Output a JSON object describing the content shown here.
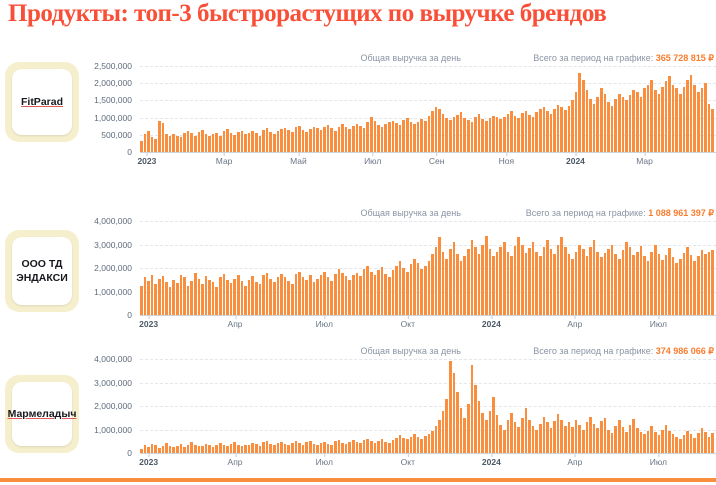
{
  "page": {
    "title": "Продукты: топ-3 быстрорастущих по выручке брендов"
  },
  "colors": {
    "accent_red": "#f94f38",
    "bar_orange": "#f98e3e",
    "total_orange": "#f97c2e",
    "card_cream": "#f6efcd"
  },
  "brands": [
    {
      "name": "FitParad",
      "linked": true
    },
    {
      "name": "ООО ТД ЭНДАКСИ",
      "linked": false
    },
    {
      "name": "Мармеладыч",
      "linked": true
    }
  ],
  "chart_data": [
    {
      "type": "bar",
      "title": "Общая выручка за день",
      "total_label": "Всего за период на графике:",
      "total_value": "365 728 815 ₽",
      "ylabel": "",
      "xlabel": "",
      "ylim": [
        0,
        2500000
      ],
      "grid": true,
      "ytick_labels": [
        "2,500,000",
        "2,000,000",
        "1,500,000",
        "1,000,000",
        "500,000",
        "0"
      ],
      "xticks": [
        {
          "label": "2023",
          "pos": 0.012,
          "bold": true
        },
        {
          "label": "Мар",
          "pos": 0.146,
          "bold": false
        },
        {
          "label": "Май",
          "pos": 0.275,
          "bold": false
        },
        {
          "label": "Июл",
          "pos": 0.404,
          "bold": false
        },
        {
          "label": "Сен",
          "pos": 0.515,
          "bold": false
        },
        {
          "label": "Ноя",
          "pos": 0.636,
          "bold": false
        },
        {
          "label": "2024",
          "pos": 0.756,
          "bold": true
        },
        {
          "label": "Мар",
          "pos": 0.876,
          "bold": false
        }
      ],
      "values": [
        320000,
        520000,
        610000,
        450000,
        380000,
        900000,
        830000,
        520000,
        460000,
        510000,
        480000,
        430000,
        560000,
        620000,
        540000,
        470000,
        590000,
        640000,
        520000,
        480000,
        510000,
        560000,
        470000,
        620000,
        680000,
        540000,
        500000,
        570000,
        610000,
        520000,
        560000,
        610000,
        540000,
        480000,
        650000,
        700000,
        580000,
        520000,
        610000,
        660000,
        700000,
        640000,
        580000,
        720000,
        760000,
        630000,
        590000,
        680000,
        740000,
        700000,
        650000,
        720000,
        780000,
        690000,
        610000,
        740000,
        800000,
        720000,
        660000,
        750000,
        820000,
        760000,
        700000,
        860000,
        1020000,
        900000,
        780000,
        730000,
        810000,
        870000,
        900000,
        840000,
        780000,
        920000,
        980000,
        860000,
        800000,
        880000,
        950000,
        900000,
        1050000,
        1180000,
        1320000,
        1240000,
        1100000,
        980000,
        920000,
        1010000,
        1080000,
        1150000,
        1000000,
        940000,
        880000,
        1020000,
        1100000,
        960000,
        900000,
        980000,
        1060000,
        1010000,
        950000,
        1020000,
        1100000,
        1180000,
        1050000,
        980000,
        1120000,
        1200000,
        1080000,
        1020000,
        1150000,
        1240000,
        1320000,
        1180000,
        1100000,
        1260000,
        1380000,
        1300000,
        1220000,
        1350000,
        1500000,
        1750000,
        2300000,
        2100000,
        1800000,
        1550000,
        1400000,
        1600000,
        1850000,
        1700000,
        1450000,
        1350000,
        1550000,
        1700000,
        1600000,
        1500000,
        1650000,
        1800000,
        1750000,
        1600000,
        1850000,
        1950000,
        2100000,
        1800000,
        1700000,
        1900000,
        2050000,
        2200000,
        1950000,
        1850000,
        1700000,
        1900000,
        2100000,
        2250000,
        1950000,
        1750000,
        1850000,
        2000000,
        1400000,
        1250000
      ]
    },
    {
      "type": "bar",
      "title": "Общая выручка за день",
      "total_label": "Всего за период на графике:",
      "total_value": "1 088 961 397 ₽",
      "ylabel": "",
      "xlabel": "",
      "ylim": [
        0,
        4000000
      ],
      "grid": true,
      "ytick_labels": [
        "4,000,000",
        "3,000,000",
        "2,000,000",
        "1,000,000",
        "0"
      ],
      "xticks": [
        {
          "label": "2023",
          "pos": 0.015,
          "bold": true
        },
        {
          "label": "Апр",
          "pos": 0.165,
          "bold": false
        },
        {
          "label": "Июл",
          "pos": 0.32,
          "bold": false
        },
        {
          "label": "Окт",
          "pos": 0.465,
          "bold": false
        },
        {
          "label": "2024",
          "pos": 0.61,
          "bold": true
        },
        {
          "label": "Апр",
          "pos": 0.755,
          "bold": false
        },
        {
          "label": "Июл",
          "pos": 0.9,
          "bold": false
        }
      ],
      "values": [
        1250000,
        1600000,
        1450000,
        1700000,
        1300000,
        1550000,
        1650000,
        1400000,
        1200000,
        1500000,
        1350000,
        1700000,
        1600000,
        1250000,
        1450000,
        1800000,
        1550000,
        1300000,
        1650000,
        1500000,
        1400000,
        1200000,
        1600000,
        1750000,
        1500000,
        1350000,
        1550000,
        1700000,
        1450000,
        1250000,
        1500000,
        1650000,
        1400000,
        1300000,
        1700000,
        1800000,
        1550000,
        1400000,
        1600000,
        1750000,
        1600000,
        1450000,
        1300000,
        1750000,
        1850000,
        1600000,
        1500000,
        1700000,
        1400000,
        1550000,
        1700000,
        1850000,
        1600000,
        1450000,
        1750000,
        1950000,
        1800000,
        1650000,
        1500000,
        1700000,
        1800000,
        1650000,
        1950000,
        2100000,
        1850000,
        1700000,
        1900000,
        2050000,
        1750000,
        1600000,
        1900000,
        2100000,
        2300000,
        2000000,
        1850000,
        2150000,
        2400000,
        2200000,
        1950000,
        2100000,
        2300000,
        2600000,
        2900000,
        3300000,
        2700000,
        2400000,
        2800000,
        3100000,
        2600000,
        2300000,
        2500000,
        2800000,
        3200000,
        2900000,
        2600000,
        3000000,
        3350000,
        2800000,
        2500000,
        2700000,
        2900000,
        3100000,
        2700000,
        2500000,
        2950000,
        3300000,
        3000000,
        2650000,
        2850000,
        3100000,
        2700000,
        2500000,
        2900000,
        3200000,
        2800000,
        2600000,
        3000000,
        3300000,
        2900000,
        2600000,
        2400000,
        2700000,
        3000000,
        2800000,
        2500000,
        2900000,
        3200000,
        2700000,
        2450000,
        2650000,
        2800000,
        3000000,
        2600000,
        2400000,
        2750000,
        3100000,
        2900000,
        2550000,
        2700000,
        2950000,
        2500000,
        2300000,
        2700000,
        3000000,
        2600000,
        2350000,
        2550000,
        2850000,
        2450000,
        2200000,
        2400000,
        2650000,
        2900000,
        2550000,
        2300000,
        2500000,
        2750000,
        2600000,
        2700000,
        2750000
      ]
    },
    {
      "type": "bar",
      "title": "Общая выручка за день",
      "total_label": "Всего за период на графике:",
      "total_value": "374 986 066 ₽",
      "ylabel": "",
      "xlabel": "",
      "ylim": [
        0,
        4000000
      ],
      "grid": true,
      "ytick_labels": [
        "4,000,000",
        "3,000,000",
        "2,000,000",
        "1,000,000",
        "0"
      ],
      "xticks": [
        {
          "label": "2023",
          "pos": 0.015,
          "bold": true
        },
        {
          "label": "Апр",
          "pos": 0.165,
          "bold": false
        },
        {
          "label": "Июл",
          "pos": 0.32,
          "bold": false
        },
        {
          "label": "Окт",
          "pos": 0.465,
          "bold": false
        },
        {
          "label": "2024",
          "pos": 0.61,
          "bold": true
        },
        {
          "label": "Апр",
          "pos": 0.755,
          "bold": false
        },
        {
          "label": "Июл",
          "pos": 0.9,
          "bold": false
        }
      ],
      "values": [
        180000,
        320000,
        260000,
        400000,
        350000,
        220000,
        300000,
        420000,
        280000,
        240000,
        300000,
        380000,
        250000,
        330000,
        450000,
        360000,
        280000,
        310000,
        400000,
        340000,
        260000,
        350000,
        430000,
        320000,
        280000,
        380000,
        460000,
        340000,
        300000,
        360000,
        320000,
        420000,
        380000,
        300000,
        460000,
        520000,
        400000,
        340000,
        420000,
        480000,
        380000,
        320000,
        440000,
        500000,
        420000,
        360000,
        450000,
        530000,
        400000,
        350000,
        420000,
        480000,
        400000,
        360000,
        500000,
        560000,
        440000,
        400000,
        480000,
        540000,
        460000,
        420000,
        540000,
        600000,
        500000,
        440000,
        520000,
        600000,
        480000,
        420000,
        550000,
        650000,
        750000,
        620000,
        580000,
        700000,
        820000,
        680000,
        600000,
        720000,
        800000,
        950000,
        1150000,
        1400000,
        1800000,
        2300000,
        3900000,
        3400000,
        2600000,
        1900000,
        1500000,
        2100000,
        3750000,
        2900000,
        2200000,
        1700000,
        1400000,
        1800000,
        2400000,
        1600000,
        1200000,
        1000000,
        1400000,
        1700000,
        1300000,
        1100000,
        1500000,
        1900000,
        1400000,
        1150000,
        1000000,
        1250000,
        1550000,
        1300000,
        1050000,
        1350000,
        1650000,
        1400000,
        1150000,
        1300000,
        1100000,
        1400000,
        1200000,
        1000000,
        1300000,
        1550000,
        1250000,
        1050000,
        1350000,
        1500000,
        1000000,
        850000,
        1150000,
        1400000,
        1100000,
        900000,
        1200000,
        1450000,
        1050000,
        900000,
        800000,
        950000,
        1150000,
        900000,
        750000,
        1000000,
        1200000,
        950000,
        800000,
        700000,
        600000,
        750000,
        950000,
        800000,
        650000,
        850000,
        1050000,
        900000,
        700000,
        850000
      ]
    }
  ]
}
